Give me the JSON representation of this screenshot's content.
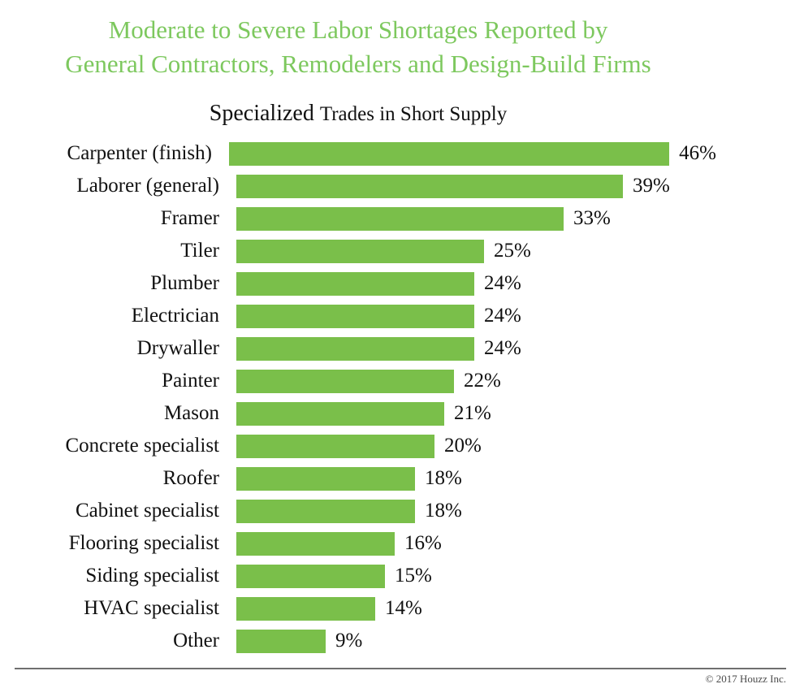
{
  "title": {
    "line1": "Moderate to Severe Labor Shortages Reported by",
    "line2": "General Contractors, Remodelers and Design-Build Firms"
  },
  "subtitle": {
    "lead": "Specialized",
    "rest": "Trades in Short Supply"
  },
  "footer": {
    "copyright": "© 2017 Houzz Inc."
  },
  "colors": {
    "title_green": "#7dc85e",
    "bar_green": "#7abf4a",
    "label_black": "#111111",
    "footer_gray": "#4a4a4a",
    "rule_gray": "#6f6f6f"
  },
  "chart_data": {
    "type": "bar",
    "orientation": "horizontal",
    "title": "Specialized Trades in Short Supply",
    "categories": [
      "Carpenter (finish)",
      "Laborer (general)",
      "Framer",
      "Tiler",
      "Plumber",
      "Electrician",
      "Drywaller",
      "Painter",
      "Mason",
      "Concrete specialist",
      "Roofer",
      "Cabinet specialist",
      "Flooring specialist",
      "Siding specialist",
      "HVAC specialist",
      "Other"
    ],
    "values": [
      46,
      39,
      33,
      25,
      24,
      24,
      24,
      22,
      21,
      20,
      18,
      18,
      16,
      15,
      14,
      9
    ],
    "value_suffix": "%",
    "xlabel": "",
    "ylabel": "",
    "xlim": [
      0,
      50
    ],
    "grid": false,
    "legend": false,
    "value_labels": "end-of-bar",
    "bar_color": "#7abf4a"
  }
}
